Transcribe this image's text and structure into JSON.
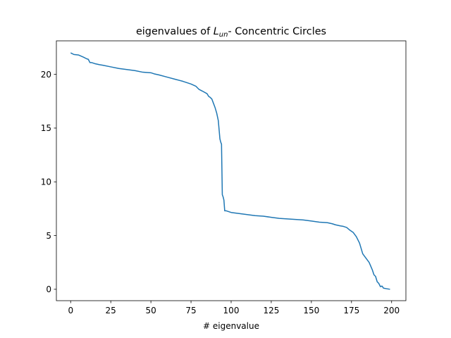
{
  "chart_data": {
    "type": "line",
    "title": {
      "prefix": "eigenvalues of ",
      "symbol": "L",
      "subscript": "un",
      "suffix": "- Concentric Circles"
    },
    "xlabel": "# eigenvalue",
    "ylabel": "",
    "xlim": [
      -8.9,
      208.9
    ],
    "ylim": [
      -1.06,
      23.12
    ],
    "xticks": [
      0,
      25,
      50,
      75,
      100,
      125,
      150,
      175,
      200
    ],
    "yticks": [
      0,
      5,
      10,
      15,
      20
    ],
    "grid": false,
    "series": [
      {
        "color": "#1f77b4",
        "x": [
          0,
          2,
          5,
          8,
          10,
          11,
          12,
          13,
          15,
          18,
          20,
          25,
          30,
          35,
          40,
          45,
          50,
          52,
          55,
          60,
          65,
          70,
          75,
          78,
          80,
          82,
          85,
          86,
          87,
          88,
          89,
          90,
          91,
          92,
          93,
          93.5,
          94,
          94.5,
          95,
          95.5,
          96,
          97,
          100,
          105,
          110,
          115,
          120,
          125,
          130,
          135,
          140,
          145,
          150,
          155,
          160,
          163,
          165,
          168,
          170,
          172,
          174,
          176,
          178,
          180,
          182,
          184,
          186,
          188,
          189,
          190,
          191,
          192,
          193,
          194,
          195,
          197,
          199
        ],
        "y": [
          22.0,
          21.85,
          21.8,
          21.6,
          21.45,
          21.4,
          21.1,
          21.1,
          21.0,
          20.9,
          20.85,
          20.7,
          20.55,
          20.45,
          20.35,
          20.2,
          20.15,
          20.05,
          19.95,
          19.75,
          19.55,
          19.35,
          19.1,
          18.9,
          18.6,
          18.45,
          18.2,
          17.95,
          17.85,
          17.7,
          17.3,
          16.9,
          16.4,
          15.7,
          14.0,
          13.7,
          13.5,
          8.8,
          8.6,
          8.3,
          7.3,
          7.3,
          7.15,
          7.05,
          6.95,
          6.85,
          6.8,
          6.7,
          6.6,
          6.55,
          6.5,
          6.45,
          6.35,
          6.25,
          6.2,
          6.1,
          6.0,
          5.9,
          5.85,
          5.75,
          5.5,
          5.3,
          4.9,
          4.3,
          3.3,
          2.9,
          2.5,
          1.8,
          1.35,
          1.2,
          0.7,
          0.55,
          0.25,
          0.3,
          0.1,
          0.05,
          0.0
        ]
      }
    ]
  }
}
